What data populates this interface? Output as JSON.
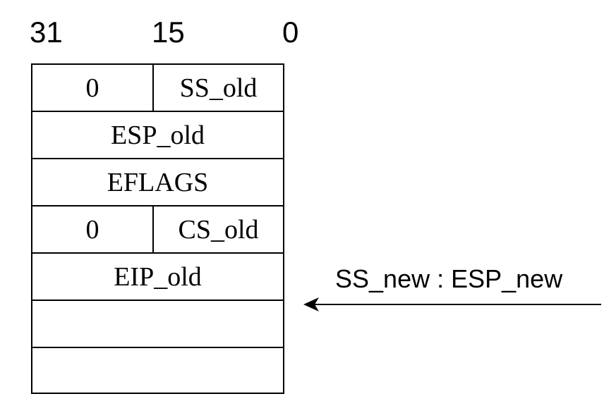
{
  "bit_positions": [
    "31",
    "15",
    "0"
  ],
  "stack_rows": [
    {
      "high": "0",
      "low": "SS_old"
    },
    {
      "full": "ESP_old"
    },
    {
      "full": "EFLAGS"
    },
    {
      "high": "0",
      "low": "CS_old"
    },
    {
      "full": "EIP_old"
    },
    {
      "full": ""
    },
    {
      "full": ""
    }
  ],
  "pointer": {
    "label": "SS_new : ESP_new",
    "points_to_row": 5
  }
}
